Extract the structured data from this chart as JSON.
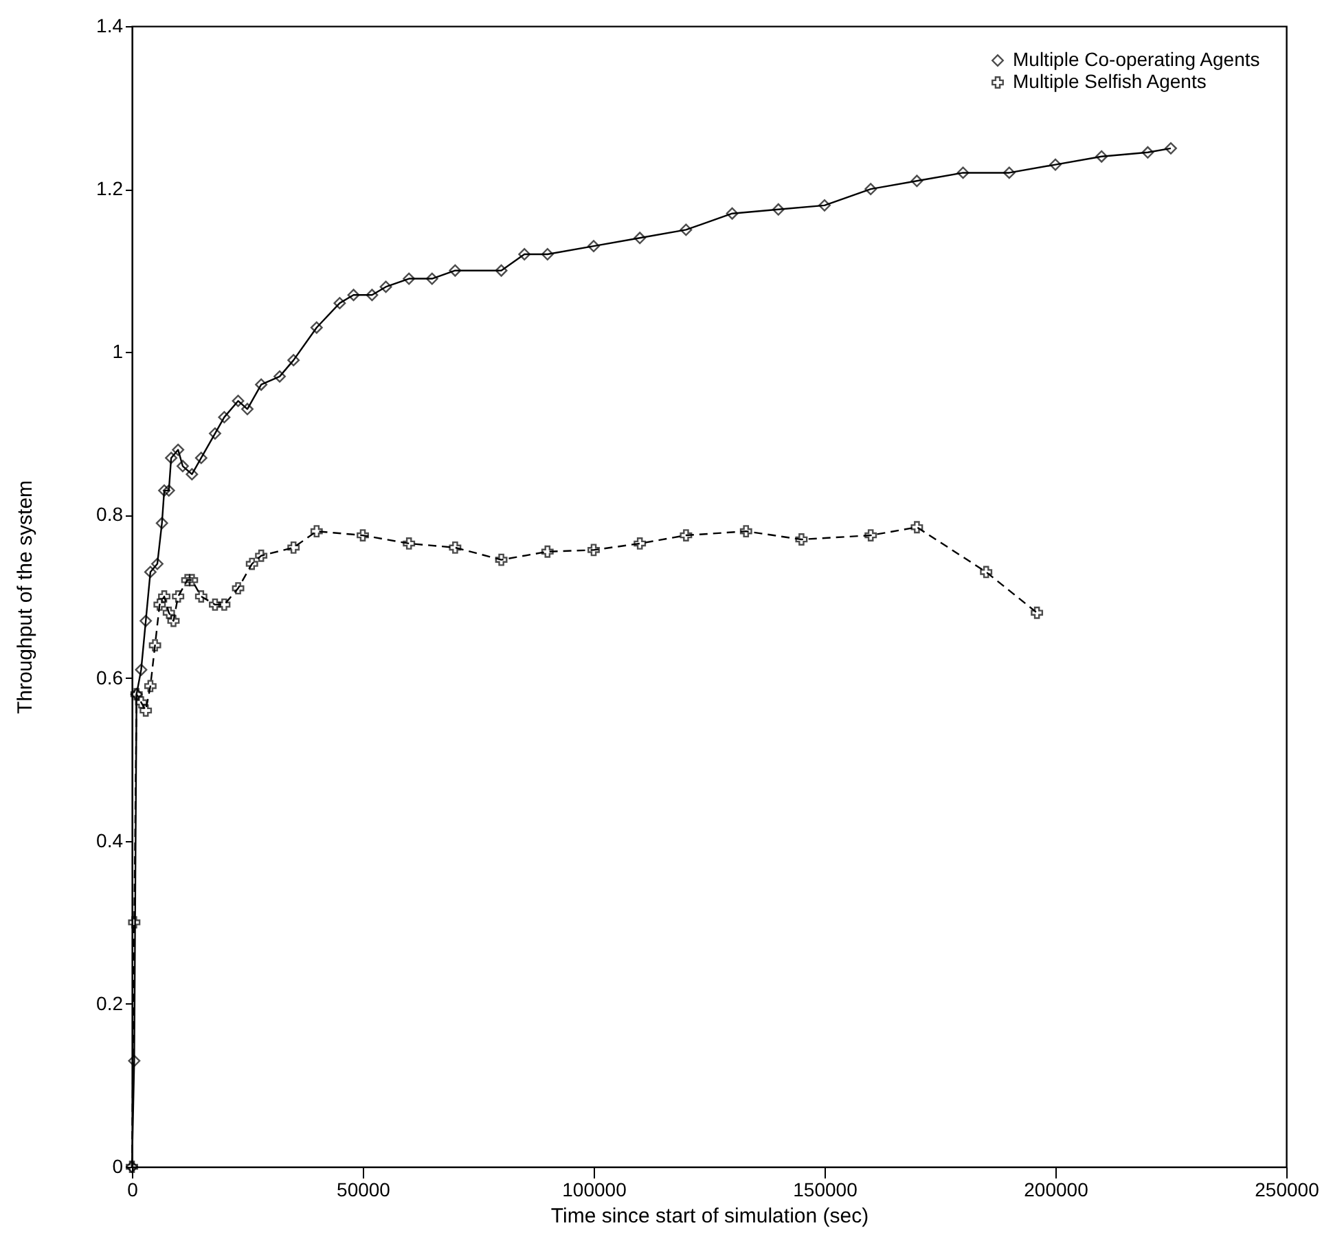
{
  "chart_data": {
    "type": "line",
    "xlabel": "Time since start of simulation (sec)",
    "ylabel": "Throughput of the system",
    "xlim": [
      0,
      250000
    ],
    "ylim": [
      0,
      1.4
    ],
    "xticks": [
      0,
      50000,
      100000,
      150000,
      200000,
      250000
    ],
    "yticks": [
      0,
      0.2,
      0.4,
      0.6,
      0.8,
      1,
      1.2,
      1.4
    ],
    "grid": false,
    "legend": "top right",
    "series": [
      {
        "name": "Multiple Co-operating Agents",
        "color": "#000000",
        "marker": "diamond",
        "line_style": "solid",
        "x": [
          0,
          500,
          1000,
          2000,
          3000,
          4000,
          5500,
          6500,
          7000,
          8000,
          8500,
          10000,
          11000,
          13000,
          15000,
          18000,
          20000,
          23000,
          25000,
          28000,
          32000,
          35000,
          40000,
          45000,
          48000,
          52000,
          55000,
          60000,
          65000,
          70000,
          80000,
          85000,
          90000,
          100000,
          110000,
          120000,
          130000,
          140000,
          150000,
          160000,
          170000,
          180000,
          190000,
          200000,
          210000,
          220000,
          225000
        ],
        "values": [
          0,
          0.13,
          0.58,
          0.61,
          0.67,
          0.73,
          0.74,
          0.79,
          0.83,
          0.83,
          0.87,
          0.88,
          0.86,
          0.85,
          0.87,
          0.9,
          0.92,
          0.94,
          0.93,
          0.96,
          0.97,
          0.99,
          1.03,
          1.06,
          1.07,
          1.07,
          1.08,
          1.09,
          1.09,
          1.1,
          1.1,
          1.12,
          1.12,
          1.13,
          1.14,
          1.15,
          1.17,
          1.175,
          1.18,
          1.2,
          1.21,
          1.22,
          1.22,
          1.23,
          1.24,
          1.245,
          1.25
        ]
      },
      {
        "name": "Multiple Selfish Agents",
        "color": "#000000",
        "marker": "cross",
        "line_style": "dashed",
        "x": [
          0,
          500,
          1000,
          2000,
          3000,
          4000,
          5000,
          6000,
          7000,
          8000,
          9000,
          10000,
          12000,
          13000,
          15000,
          18000,
          20000,
          23000,
          26000,
          28000,
          35000,
          40000,
          50000,
          60000,
          70000,
          80000,
          90000,
          100000,
          110000,
          120000,
          133000,
          145000,
          160000,
          170000,
          185000,
          196000
        ],
        "values": [
          0,
          0.3,
          0.58,
          0.57,
          0.56,
          0.59,
          0.64,
          0.69,
          0.7,
          0.68,
          0.67,
          0.7,
          0.72,
          0.72,
          0.7,
          0.69,
          0.69,
          0.71,
          0.74,
          0.75,
          0.76,
          0.78,
          0.775,
          0.765,
          0.76,
          0.745,
          0.755,
          0.757,
          0.765,
          0.775,
          0.78,
          0.77,
          0.775,
          0.785,
          0.73,
          0.68
        ]
      }
    ]
  }
}
